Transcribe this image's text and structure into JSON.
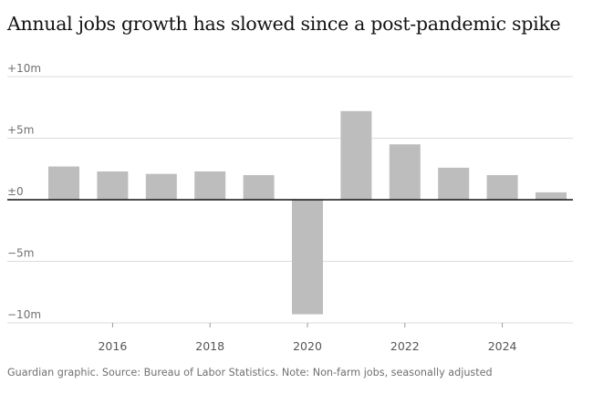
{
  "chart_data": {
    "type": "bar",
    "title": "Annual jobs growth has slowed since a post-pandemic spike",
    "xlabel": "",
    "ylabel": "",
    "x": [
      2015,
      2016,
      2017,
      2018,
      2019,
      2020,
      2021,
      2022,
      2023,
      2024,
      2025
    ],
    "values": [
      2.7,
      2.3,
      2.1,
      2.3,
      2.0,
      -9.3,
      7.2,
      4.5,
      2.6,
      2.0,
      0.6
    ],
    "unit": "m",
    "ylim": [
      -10,
      10
    ],
    "yticks": [
      10,
      5,
      0,
      -5,
      -10
    ],
    "ytick_labels": [
      "+10m",
      "+5m",
      "±0",
      "−5m",
      "−10m"
    ],
    "xticks": [
      2016,
      2018,
      2020,
      2022,
      2024
    ],
    "xtick_labels": [
      "2016",
      "2018",
      "2020",
      "2022",
      "2024"
    ],
    "bar_color": "#bdbdbd",
    "grid_color": "#dcdcdc",
    "zero_line_color": "#121212",
    "source": "Guardian graphic. Source: Bureau of Labor Statistics. Note: Non-farm jobs, seasonally adjusted"
  }
}
